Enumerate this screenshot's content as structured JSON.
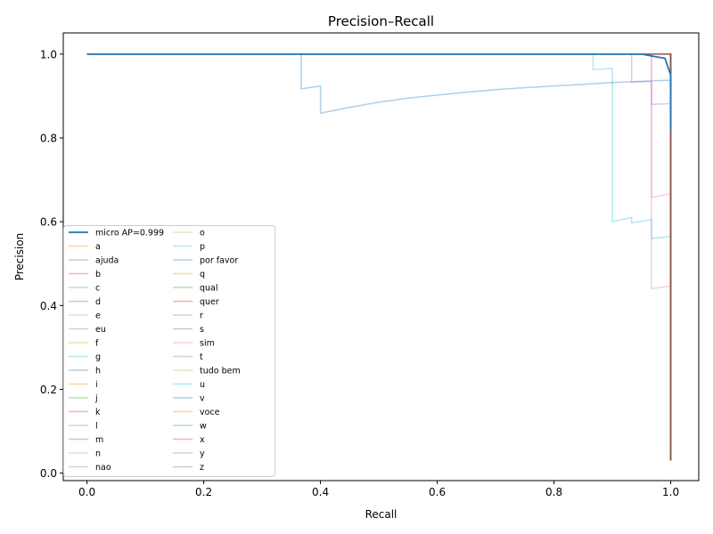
{
  "chart_data": {
    "type": "line",
    "title": "Precision–Recall",
    "xlabel": "Recall",
    "ylabel": "Precision",
    "xlim": [
      -0.05,
      1.05
    ],
    "ylim": [
      -0.02,
      1.05
    ],
    "xticks": [
      "0.0",
      "0.2",
      "0.4",
      "0.6",
      "0.8",
      "1.0"
    ],
    "yticks": [
      "0.0",
      "0.2",
      "0.4",
      "0.6",
      "0.8",
      "1.0"
    ],
    "grid": false,
    "legend_position": "lower-left",
    "series": [
      {
        "name": "micro AP=0.999",
        "color": "#1f77b4",
        "opacity": 1.0,
        "points": [
          [
            0,
            1
          ],
          [
            0.95,
            1
          ],
          [
            0.97,
            0.995
          ],
          [
            0.99,
            0.99
          ],
          [
            0.995,
            0.97
          ],
          [
            1,
            0.95
          ],
          [
            1,
            0.82
          ]
        ]
      },
      {
        "name": "a",
        "color": "#ff7f0e",
        "opacity": 0.35,
        "points": [
          [
            0,
            1
          ],
          [
            1,
            1
          ],
          [
            1,
            0.03
          ]
        ]
      },
      {
        "name": "ajuda",
        "color": "#2ca02c",
        "opacity": 0.35,
        "points": [
          [
            0,
            1
          ],
          [
            1,
            1
          ],
          [
            1,
            0.03
          ]
        ]
      },
      {
        "name": "b",
        "color": "#d62728",
        "opacity": 0.35,
        "points": [
          [
            0,
            1
          ],
          [
            1,
            1
          ],
          [
            1,
            0.03
          ]
        ]
      },
      {
        "name": "c",
        "color": "#7f7f7f",
        "opacity": 0.35,
        "points": [
          [
            0,
            1
          ],
          [
            1,
            1
          ],
          [
            1,
            0.03
          ]
        ]
      },
      {
        "name": "d",
        "color": "#8c564b",
        "opacity": 0.35,
        "points": [
          [
            0,
            1
          ],
          [
            1,
            1
          ],
          [
            1,
            0.03
          ]
        ]
      },
      {
        "name": "e",
        "color": "#e377c2",
        "opacity": 0.35,
        "points": [
          [
            0,
            1
          ],
          [
            1,
            1
          ],
          [
            1,
            0.03
          ]
        ]
      },
      {
        "name": "eu",
        "color": "#7f7f7f",
        "opacity": 0.35,
        "points": [
          [
            0,
            1
          ],
          [
            1,
            1
          ],
          [
            1,
            0.03
          ]
        ]
      },
      {
        "name": "f",
        "color": "#bcbd22",
        "opacity": 0.35,
        "points": [
          [
            0,
            1
          ],
          [
            1,
            1
          ],
          [
            1,
            0.03
          ]
        ]
      },
      {
        "name": "g",
        "color": "#17becf",
        "opacity": 0.35,
        "points": [
          [
            0,
            1
          ],
          [
            0.867,
            1
          ],
          [
            0.867,
            0.963
          ],
          [
            0.9,
            0.966
          ],
          [
            0.9,
            0.6
          ],
          [
            0.933,
            0.61
          ],
          [
            0.933,
            0.597
          ],
          [
            0.967,
            0.605
          ],
          [
            0.967,
            0.56
          ],
          [
            1,
            0.565
          ],
          [
            1,
            0.03
          ]
        ]
      },
      {
        "name": "h",
        "color": "#1f77b4",
        "opacity": 0.35,
        "points": [
          [
            0,
            1
          ],
          [
            0.367,
            1
          ],
          [
            0.367,
            0.917
          ],
          [
            0.4,
            0.924
          ],
          [
            0.4,
            0.859
          ],
          [
            0.45,
            0.873
          ],
          [
            0.5,
            0.885
          ],
          [
            0.55,
            0.895
          ],
          [
            0.6,
            0.902
          ],
          [
            0.65,
            0.909
          ],
          [
            0.7,
            0.915
          ],
          [
            0.75,
            0.92
          ],
          [
            0.8,
            0.924
          ],
          [
            0.85,
            0.928
          ],
          [
            0.9,
            0.932
          ],
          [
            0.95,
            0.935
          ],
          [
            1,
            0.938
          ],
          [
            1,
            0.03
          ]
        ]
      },
      {
        "name": "i",
        "color": "#ff7f0e",
        "opacity": 0.35,
        "points": [
          [
            0,
            1
          ],
          [
            1,
            1
          ],
          [
            1,
            0.03
          ]
        ]
      },
      {
        "name": "j",
        "color": "#2ca02c",
        "opacity": 0.35,
        "points": [
          [
            0,
            1
          ],
          [
            1,
            1
          ],
          [
            1,
            0.03
          ]
        ]
      },
      {
        "name": "k",
        "color": "#d62728",
        "opacity": 0.35,
        "points": [
          [
            0,
            1
          ],
          [
            1,
            1
          ],
          [
            1,
            0.03
          ]
        ]
      },
      {
        "name": "l",
        "color": "#9467bd",
        "opacity": 0.35,
        "points": [
          [
            0,
            1
          ],
          [
            0.933,
            1
          ],
          [
            0.933,
            0.933
          ],
          [
            0.967,
            0.935
          ],
          [
            0.967,
            0.88
          ],
          [
            1,
            0.882
          ],
          [
            1,
            0.03
          ]
        ]
      },
      {
        "name": "m",
        "color": "#8c564b",
        "opacity": 0.35,
        "points": [
          [
            0,
            1
          ],
          [
            1,
            1
          ],
          [
            1,
            0.03
          ]
        ]
      },
      {
        "name": "n",
        "color": "#e377c2",
        "opacity": 0.35,
        "points": [
          [
            0,
            1
          ],
          [
            0.967,
            1
          ],
          [
            0.967,
            0.44
          ],
          [
            1,
            0.447
          ],
          [
            1,
            0.03
          ]
        ]
      },
      {
        "name": "nao",
        "color": "#7f7f7f",
        "opacity": 0.35,
        "points": [
          [
            0,
            1
          ],
          [
            1,
            1
          ],
          [
            1,
            0.03
          ]
        ]
      },
      {
        "name": "o",
        "color": "#bcbd22",
        "opacity": 0.35,
        "points": [
          [
            0,
            1
          ],
          [
            1,
            1
          ],
          [
            1,
            0.03
          ]
        ]
      },
      {
        "name": "p",
        "color": "#17becf",
        "opacity": 0.35,
        "points": [
          [
            0,
            1
          ],
          [
            1,
            1
          ],
          [
            1,
            0.03
          ]
        ]
      },
      {
        "name": "por favor",
        "color": "#1f77b4",
        "opacity": 0.35,
        "points": [
          [
            0,
            1
          ],
          [
            1,
            1
          ],
          [
            1,
            0.03
          ]
        ]
      },
      {
        "name": "q",
        "color": "#ff7f0e",
        "opacity": 0.35,
        "points": [
          [
            0,
            1
          ],
          [
            1,
            1
          ],
          [
            1,
            0.03
          ]
        ]
      },
      {
        "name": "qual",
        "color": "#2ca02c",
        "opacity": 0.35,
        "points": [
          [
            0,
            1
          ],
          [
            1,
            1
          ],
          [
            1,
            0.03
          ]
        ]
      },
      {
        "name": "quer",
        "color": "#d62728",
        "opacity": 0.35,
        "points": [
          [
            0,
            1
          ],
          [
            1,
            1
          ],
          [
            1,
            0.03
          ]
        ]
      },
      {
        "name": "r",
        "color": "#9467bd",
        "opacity": 0.35,
        "points": [
          [
            0,
            1
          ],
          [
            1,
            1
          ],
          [
            1,
            0.03
          ]
        ]
      },
      {
        "name": "s",
        "color": "#8c564b",
        "opacity": 0.35,
        "points": [
          [
            0,
            1
          ],
          [
            1,
            1
          ],
          [
            1,
            0.03
          ]
        ]
      },
      {
        "name": "sim",
        "color": "#e377c2",
        "opacity": 0.35,
        "points": [
          [
            0,
            1
          ],
          [
            0.967,
            1
          ],
          [
            0.967,
            0.658
          ],
          [
            1,
            0.667
          ],
          [
            1,
            0.03
          ]
        ]
      },
      {
        "name": "t",
        "color": "#7f7f7f",
        "opacity": 0.35,
        "points": [
          [
            0,
            1
          ],
          [
            1,
            1
          ],
          [
            1,
            0.03
          ]
        ]
      },
      {
        "name": "tudo bem",
        "color": "#bcbd22",
        "opacity": 0.35,
        "points": [
          [
            0,
            1
          ],
          [
            1,
            1
          ],
          [
            1,
            0.03
          ]
        ]
      },
      {
        "name": "u",
        "color": "#17becf",
        "opacity": 0.35,
        "points": [
          [
            0,
            1
          ],
          [
            1,
            1
          ],
          [
            1,
            0.03
          ]
        ]
      },
      {
        "name": "v",
        "color": "#1f77b4",
        "opacity": 0.35,
        "points": [
          [
            0,
            1
          ],
          [
            1,
            1
          ],
          [
            1,
            0.03
          ]
        ]
      },
      {
        "name": "voce",
        "color": "#ff7f0e",
        "opacity": 0.35,
        "points": [
          [
            0,
            1
          ],
          [
            1,
            1
          ],
          [
            1,
            0.03
          ]
        ]
      },
      {
        "name": "w",
        "color": "#2ca02c",
        "opacity": 0.35,
        "points": [
          [
            0,
            1
          ],
          [
            1,
            1
          ],
          [
            1,
            0.03
          ]
        ]
      },
      {
        "name": "x",
        "color": "#d62728",
        "opacity": 0.35,
        "points": [
          [
            0,
            1
          ],
          [
            1,
            1
          ],
          [
            1,
            0.03
          ]
        ]
      },
      {
        "name": "y",
        "color": "#9467bd",
        "opacity": 0.35,
        "points": [
          [
            0,
            1
          ],
          [
            1,
            1
          ],
          [
            1,
            0.03
          ]
        ]
      },
      {
        "name": "z",
        "color": "#8c564b",
        "opacity": 0.9,
        "points": [
          [
            0,
            1
          ],
          [
            1,
            1
          ],
          [
            1,
            0.03
          ]
        ]
      }
    ]
  }
}
